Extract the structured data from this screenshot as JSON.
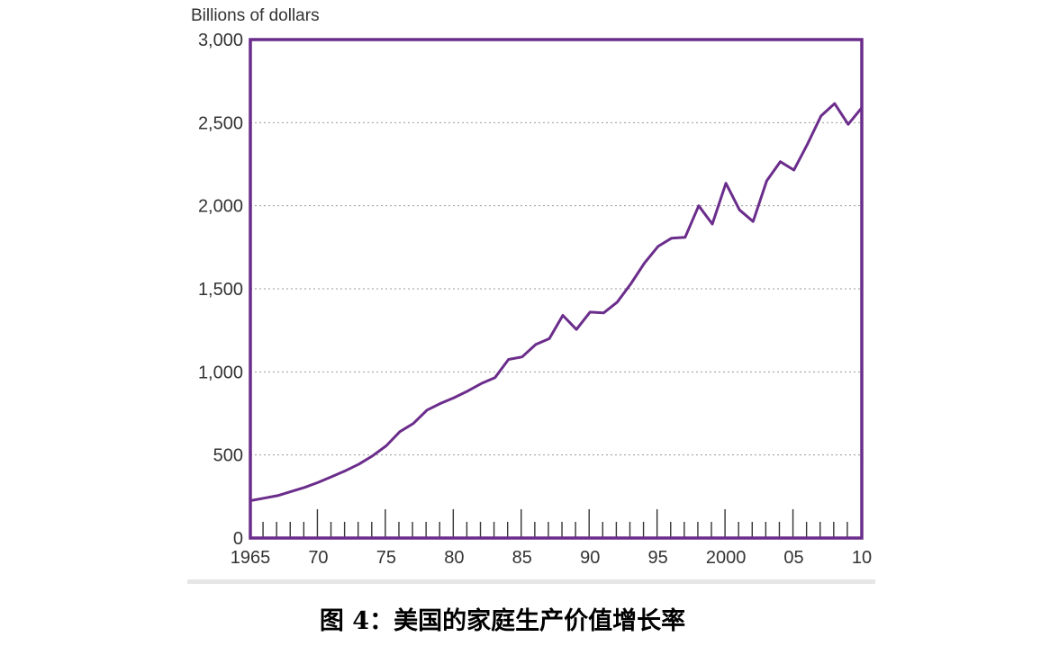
{
  "caption": "图 4：美国的家庭生产价值增长率",
  "chart_data": {
    "type": "line",
    "title": "",
    "xlabel": "",
    "ylabel": "Billions of dollars",
    "ylim": [
      0,
      3000
    ],
    "xlim": [
      1965,
      2010
    ],
    "yticks": [
      0,
      500,
      1000,
      1500,
      2000,
      2500,
      3000
    ],
    "ytick_labels": [
      "0",
      "500",
      "1,000",
      "1,500",
      "2,000",
      "2,500",
      "3,000"
    ],
    "xticks": [
      1965,
      1970,
      1975,
      1980,
      1985,
      1990,
      1995,
      2000,
      2005,
      2010
    ],
    "xtick_labels": [
      "1965",
      "70",
      "75",
      "80",
      "85",
      "90",
      "95",
      "2000",
      "05",
      "10"
    ],
    "grid": "horizontal-dotted",
    "line_color": "#6b2d8b",
    "series": [
      {
        "name": "",
        "x": [
          1965,
          1966,
          1967,
          1968,
          1969,
          1970,
          1971,
          1972,
          1973,
          1974,
          1975,
          1976,
          1977,
          1978,
          1979,
          1980,
          1981,
          1982,
          1983,
          1984,
          1985,
          1986,
          1987,
          1988,
          1989,
          1990,
          1991,
          1992,
          1993,
          1994,
          1995,
          1996,
          1997,
          1998,
          1999,
          2000,
          2001,
          2002,
          2003,
          2004,
          2005,
          2006,
          2007,
          2008,
          2009,
          2010
        ],
        "values": [
          225,
          240,
          255,
          280,
          305,
          335,
          370,
          405,
          445,
          495,
          555,
          640,
          690,
          770,
          810,
          845,
          885,
          930,
          965,
          1075,
          1090,
          1165,
          1200,
          1340,
          1255,
          1360,
          1355,
          1420,
          1530,
          1655,
          1755,
          1805,
          1810,
          2000,
          1890,
          2135,
          1975,
          1905,
          2150,
          2265,
          2215,
          2370,
          2540,
          2615,
          2490,
          2590
        ]
      }
    ]
  }
}
